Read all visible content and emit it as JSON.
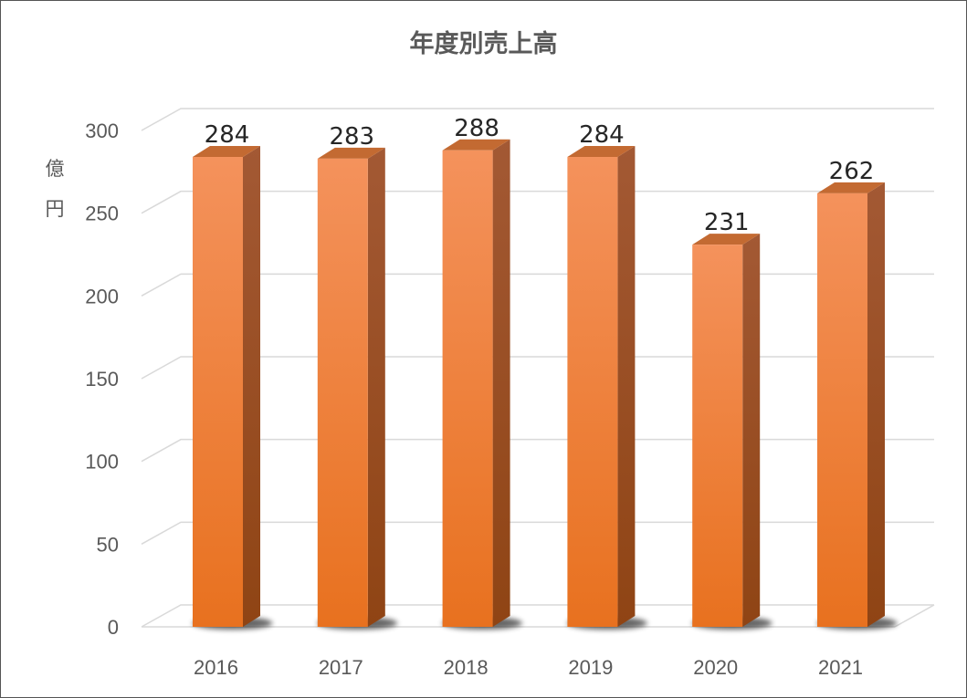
{
  "chart_data": {
    "type": "bar",
    "title": "年度別売上高",
    "ylabel_chars": [
      "億",
      "円"
    ],
    "categories": [
      "2016",
      "2017",
      "2018",
      "2019",
      "2020",
      "2021"
    ],
    "values": [
      284,
      283,
      288,
      284,
      231,
      262
    ],
    "value_labels": [
      "284",
      "283",
      "288",
      "284",
      "231",
      "262"
    ],
    "yticks": [
      "0",
      "50",
      "100",
      "150",
      "200",
      "250",
      "300"
    ],
    "ylim": [
      0,
      300
    ],
    "grid": true,
    "legend": "none",
    "colors": {
      "bar_front_top": "#f4925c",
      "bar_front_bottom": "#e8711f",
      "bar_side": "#a2531f",
      "bar_top": "#c36a32",
      "grid": "#d9d9d9"
    }
  }
}
